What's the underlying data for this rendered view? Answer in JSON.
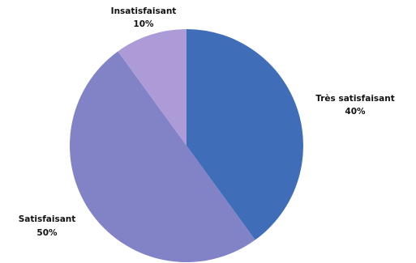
{
  "chart_data": {
    "type": "pie",
    "slices": [
      {
        "label": "Très satisfaisant",
        "percent_label": "40%",
        "value": 40,
        "color": "#3F6DB8"
      },
      {
        "label": "Satisfaisant",
        "percent_label": "50%",
        "value": 50,
        "color": "#8283C7"
      },
      {
        "label": "Insatisfaisant",
        "percent_label": "10%",
        "value": 10,
        "color": "#AC9BD7"
      }
    ],
    "start_angle_deg": 0,
    "direction": "clockwise"
  }
}
